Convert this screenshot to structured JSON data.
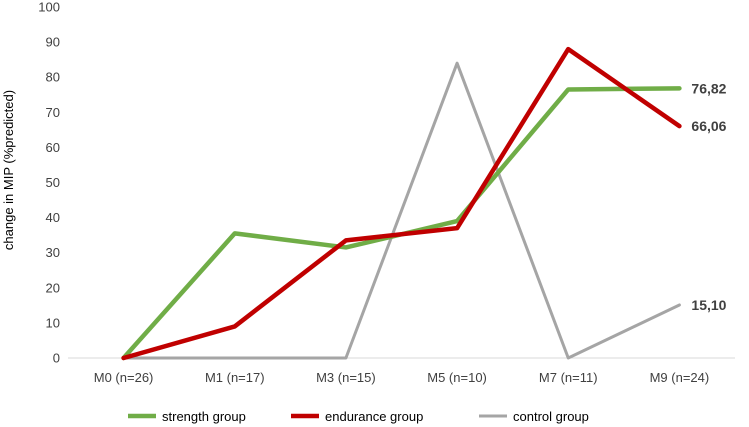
{
  "chart_data": {
    "type": "line",
    "categories": [
      "M0 (n=26)",
      "M1 (n=17)",
      "M3 (n=15)",
      "M5 (n=10)",
      "M7 (n=11)",
      "M9 (n=24)"
    ],
    "ylabel": "change in MIP (%predicted)",
    "ylim": [
      0,
      100
    ],
    "yticks": [
      "0",
      "10",
      "20",
      "30",
      "40",
      "50",
      "60",
      "70",
      "80",
      "90",
      "100"
    ],
    "grid": false,
    "legend_position": "bottom",
    "series": [
      {
        "name": "strength group",
        "color": "#70ad47",
        "values": [
          0,
          35.5,
          31.5,
          39,
          76.5,
          76.82
        ],
        "end_label": "76,82"
      },
      {
        "name": "endurance group",
        "color": "#c00000",
        "values": [
          0,
          9,
          33.5,
          37,
          88,
          66.06
        ],
        "end_label": "66,06"
      },
      {
        "name": "control group",
        "color": "#a5a5a5",
        "values": [
          0,
          0,
          0,
          84,
          0,
          15.1
        ],
        "end_label": "15,10"
      }
    ]
  }
}
